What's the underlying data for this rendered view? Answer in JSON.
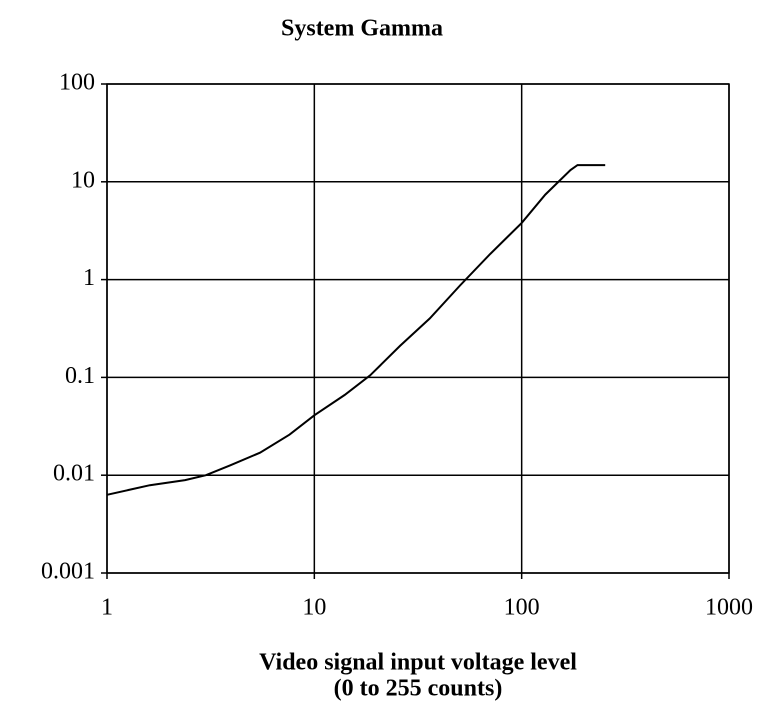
{
  "chart_data": {
    "type": "line",
    "title": "System Gamma",
    "xlabel": [
      "Video signal input voltage level",
      "(0 to 255 counts)"
    ],
    "xscale": "log",
    "yscale": "log",
    "xlim": [
      1,
      1000
    ],
    "ylim": [
      0.001,
      100
    ],
    "xticks": [
      1,
      10,
      100,
      1000
    ],
    "yticks": [
      0.001,
      0.01,
      0.1,
      1,
      10,
      100
    ],
    "grid": true,
    "series": [
      {
        "color": "#000000",
        "x": [
          1,
          1.61,
          2.38,
          3,
          3.92,
          5.47,
          7.6,
          10,
          14,
          18.6,
          25.9,
          36,
          50.4,
          70,
          100,
          130,
          172,
          186,
          253
        ],
        "values": [
          0.0063,
          0.0079,
          0.0089,
          0.01,
          0.0126,
          0.017,
          0.026,
          0.041,
          0.066,
          0.105,
          0.21,
          0.4,
          0.87,
          1.8,
          3.8,
          7.4,
          13.2,
          14.8,
          14.8
        ]
      }
    ]
  }
}
